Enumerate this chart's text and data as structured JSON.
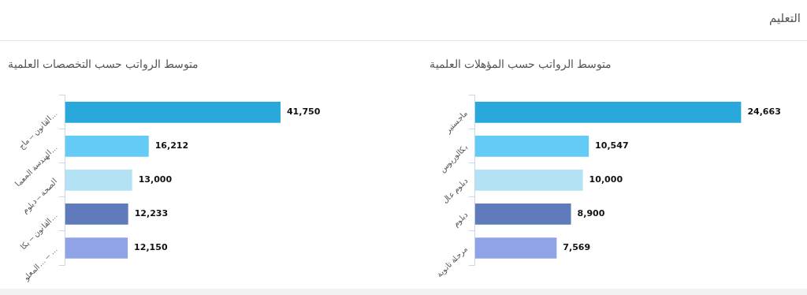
{
  "chart_data": [
    {
      "type": "other",
      "title": "التعليم"
    },
    {
      "type": "bar",
      "orientation": "horizontal",
      "tick_labels": "y",
      "title": "متوسط الرواتب حسب المؤهلات العلمية",
      "categories": [
        "ماجستير",
        "بكالوريوس",
        "دبلوم عال",
        "دبلوم",
        "مرحلة ثانوية"
      ],
      "values": [
        24663,
        10547,
        10000,
        8900,
        7569
      ],
      "value_labels": [
        "24,663",
        "10,547",
        "10,000",
        "8,900",
        "7,569"
      ],
      "colors": [
        "#29a8dc",
        "#63cbf5",
        "#b3e2f5",
        "#5f7bbc",
        "#8fa3e6"
      ],
      "legend": false
    },
    {
      "type": "bar",
      "orientation": "horizontal",
      "tick_labels": "y",
      "title": "متوسط الرواتب حسب التخصصات العلمية",
      "categories": [
        "القانون – ماج…",
        "الهندسة المعما…",
        "الصحة – دبلوم",
        "القانون – بكا…",
        "المعلو… – …"
      ],
      "values": [
        41750,
        16212,
        13000,
        12233,
        12150
      ],
      "value_labels": [
        "41,750",
        "16,212",
        "13,000",
        "12,233",
        "12,150"
      ],
      "colors": [
        "#29a8dc",
        "#63cbf5",
        "#b3e2f5",
        "#5f7bbc",
        "#8fa3e6"
      ],
      "legend": false
    }
  ]
}
